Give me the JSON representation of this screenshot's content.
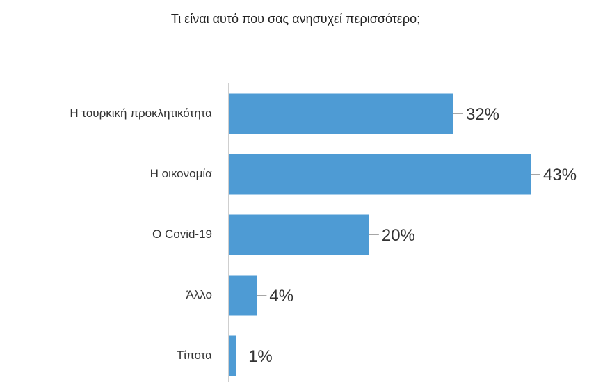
{
  "chart_data": {
    "type": "bar",
    "orientation": "horizontal",
    "title": "Τι είναι αυτό που σας ανησυχεί περισσότερο;",
    "categories": [
      "Η τουρκική προκλητικότητα",
      "Η οικονομία",
      "Ο Covid-19",
      "Άλλο",
      "Τίποτα"
    ],
    "values": [
      32,
      43,
      20,
      4,
      1
    ],
    "value_labels": [
      "32%",
      "43%",
      "20%",
      "4%",
      "1%"
    ],
    "color": "#4e9bd4"
  }
}
